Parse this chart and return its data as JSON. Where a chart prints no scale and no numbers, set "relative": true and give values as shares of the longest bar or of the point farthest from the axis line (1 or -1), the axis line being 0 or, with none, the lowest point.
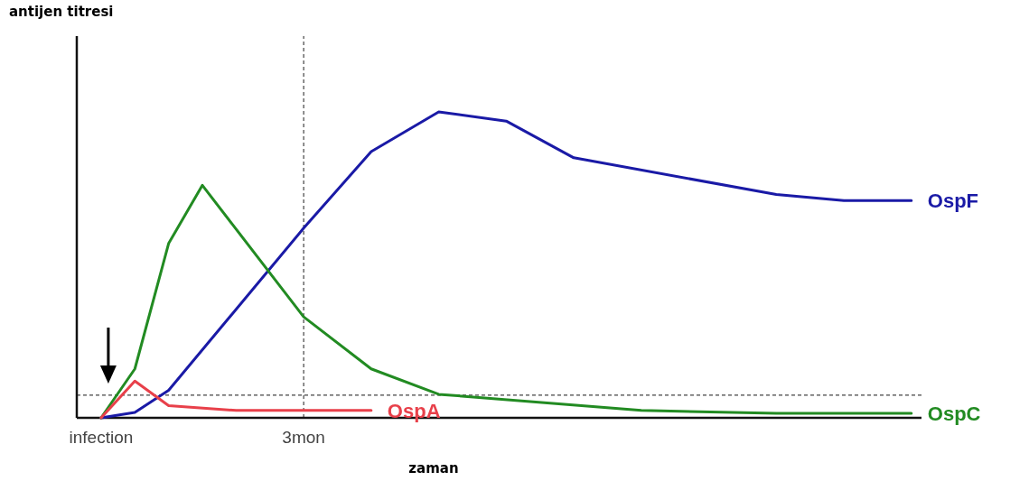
{
  "chart_data": {
    "type": "line",
    "xlabel": "zaman",
    "annotations": [
      "antijen titresi"
    ],
    "relative": true,
    "categories": [
      "infection",
      null,
      null,
      null,
      null,
      null,
      "3mon",
      null,
      null,
      null,
      null,
      null,
      null,
      null,
      null,
      null,
      null,
      null,
      null,
      null,
      null,
      null,
      null,
      null,
      null
    ],
    "series": [
      {
        "name": "OspF",
        "color": "#1a1aa6",
        "values": [
          0,
          0.018,
          0.09,
          null,
          null,
          null,
          0.62,
          null,
          0.87,
          null,
          1,
          null,
          0.97,
          null,
          0.85,
          null,
          null,
          null,
          null,
          null,
          0.73,
          null,
          0.71,
          null,
          0.71
        ]
      },
      {
        "name": "OspC",
        "color": "#228b22",
        "values": [
          0,
          0.16,
          0.57,
          0.76,
          null,
          null,
          0.33,
          null,
          0.16,
          null,
          0.077,
          null,
          null,
          null,
          null,
          null,
          0.024,
          null,
          null,
          null,
          0.015,
          null,
          null,
          null,
          0.015
        ]
      },
      {
        "name": "OspA",
        "color": "#e8404a",
        "values": [
          0,
          0.12,
          0.04,
          null,
          0.024,
          null,
          null,
          null,
          0.024,
          null,
          null,
          null,
          null,
          null,
          null,
          null,
          null,
          null,
          null,
          null,
          null,
          null,
          null,
          null,
          null
        ]
      }
    ],
    "ref_lines": [
      {
        "axis": "y",
        "value": 0.074,
        "line_style": "dashed",
        "color": "#444444"
      },
      {
        "axis": "x",
        "value": "3mon",
        "line_style": "dashed",
        "color": "#444444"
      }
    ],
    "line_style": "solid",
    "marker": "none"
  }
}
